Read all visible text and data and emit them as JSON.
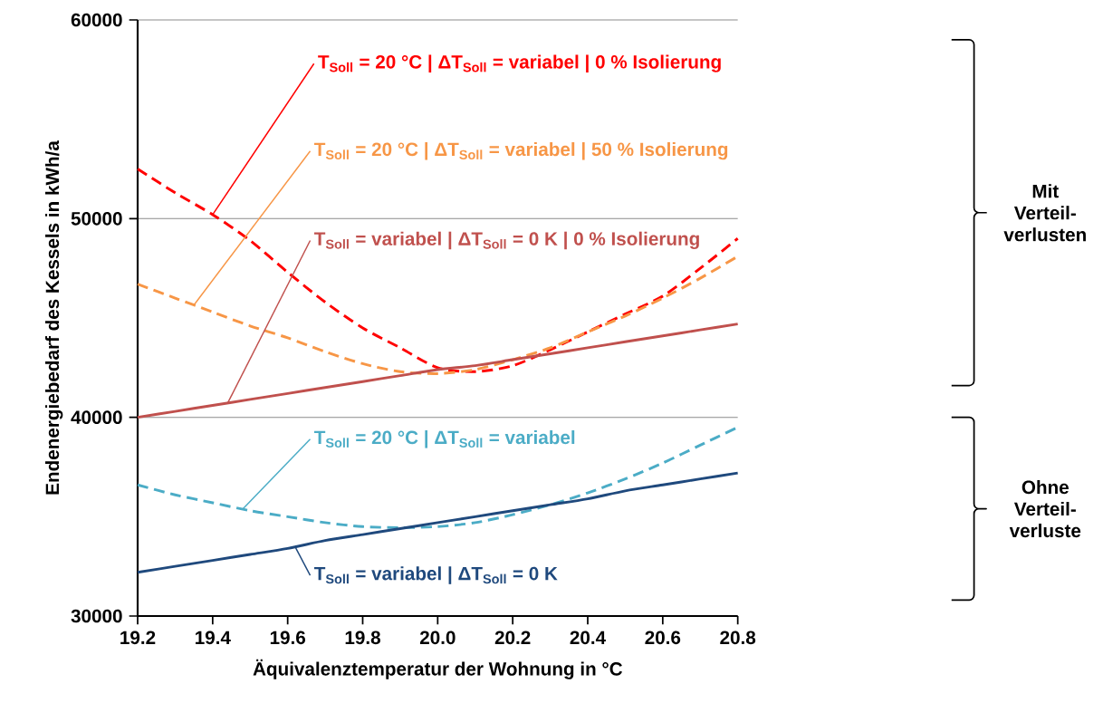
{
  "chart_data": {
    "type": "line",
    "xlabel": "Äquivalenztemperatur der Wohnung in °C",
    "ylabel": "Endenergiebedarf des Kessels in kWh/a",
    "x": [
      19.2,
      19.3,
      19.4,
      19.5,
      19.6,
      19.7,
      19.8,
      19.9,
      20.0,
      20.1,
      20.2,
      20.3,
      20.4,
      20.5,
      20.6,
      20.7,
      20.8
    ],
    "series": [
      {
        "color": "#ff0000",
        "line_style": "dashed",
        "values": [
          52500,
          51300,
          50200,
          48900,
          47300,
          45800,
          44500,
          43500,
          42500,
          42300,
          42600,
          43400,
          44300,
          45200,
          46100,
          47500,
          49000
        ]
      },
      {
        "color": "#f79646",
        "line_style": "dashed",
        "values": [
          46700,
          46000,
          45300,
          44600,
          44000,
          43300,
          42700,
          42300,
          42200,
          42400,
          42900,
          43500,
          44300,
          45100,
          46000,
          47000,
          48100
        ]
      },
      {
        "color": "#c0504d",
        "line_style": "solid",
        "values": [
          40000,
          40300,
          40600,
          40900,
          41200,
          41500,
          41800,
          42100,
          42400,
          42600,
          42900,
          43200,
          43500,
          43800,
          44100,
          44400,
          44700
        ]
      },
      {
        "color": "#4bacc6",
        "line_style": "dashed",
        "values": [
          36600,
          36100,
          35700,
          35300,
          35000,
          34700,
          34500,
          34450,
          34500,
          34700,
          35100,
          35600,
          36200,
          36900,
          37700,
          38600,
          39500
        ]
      },
      {
        "color": "#1f497d",
        "line_style": "solid",
        "values": [
          32200,
          32500,
          32800,
          33100,
          33400,
          33800,
          34100,
          34400,
          34700,
          35000,
          35300,
          35600,
          35900,
          36300,
          36600,
          36900,
          37200
        ]
      }
    ],
    "annotations": [
      {
        "text": "T$_{Soll}$ = 20 °C | ΔT$_{Soll}$ = variabel | 0 % Isolierung",
        "x": 19.4,
        "y": 50200
      },
      {
        "text": "T$_{Soll}$ = 20 °C | ΔT$_{Soll}$ = variabel | 50 % Isolierung",
        "x": 19.35,
        "y": 45650
      },
      {
        "text": "T$_{Soll}$ = variabel | ΔT$_{Soll}$ = 0 K | 0 % Isolierung",
        "x": 19.44,
        "y": 40720
      },
      {
        "text": "T$_{Soll}$ = 20 °C | ΔT$_{Soll}$ = variabel",
        "x": 19.48,
        "y": 35380
      },
      {
        "text": "T$_{Soll}$ = variabel | ΔT$_{Soll}$ = 0 K",
        "x": 19.62,
        "y": 33480
      },
      "Mit Verteil-verlusten",
      "Ohne Verteil-verluste"
    ],
    "xlim": [
      19.2,
      20.8
    ],
    "ylim": [
      30000,
      60000
    ],
    "xticks": [
      19.2,
      19.4,
      19.6,
      19.8,
      {
        "value": 20.0,
        "label": "20.0"
      },
      20.2,
      20.4,
      20.6,
      20.8
    ],
    "yticks": [
      30000,
      40000,
      50000,
      60000
    ],
    "grid": "y",
    "marker": "none"
  }
}
